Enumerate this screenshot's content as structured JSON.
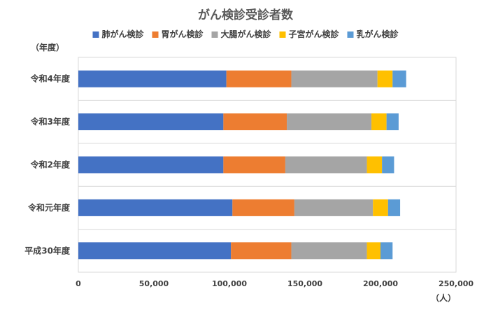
{
  "chart_data": {
    "type": "bar",
    "orientation": "horizontal",
    "stacked": true,
    "title": "がん検診受診者数",
    "ylabel": "（年度）",
    "xlabel": "（人）",
    "xlim": [
      0,
      250000
    ],
    "x_ticks": [
      0,
      50000,
      100000,
      150000,
      200000,
      250000
    ],
    "x_tick_labels": [
      "0",
      "50,000",
      "100,000",
      "150,000",
      "200,000",
      "250,000"
    ],
    "grid": true,
    "legend_position": "top",
    "categories": [
      "令和4年度",
      "令和3年度",
      "令和2年度",
      "令和元年度",
      "平成30年度"
    ],
    "series": [
      {
        "name": "肺がん検診",
        "color": "#4472c4",
        "values": [
          98000,
          96000,
          96000,
          102000,
          101000
        ]
      },
      {
        "name": "胃がん検診",
        "color": "#ed7d31",
        "values": [
          43000,
          42000,
          41000,
          41000,
          40000
        ]
      },
      {
        "name": "大腸がん検診",
        "color": "#a5a5a5",
        "values": [
          57000,
          56000,
          54000,
          52000,
          50000
        ]
      },
      {
        "name": "子宮がん検診",
        "color": "#ffc000",
        "values": [
          10000,
          10000,
          10000,
          10000,
          9000
        ]
      },
      {
        "name": "乳がん検診",
        "color": "#5b9bd5",
        "values": [
          9000,
          8000,
          8000,
          8000,
          8000
        ]
      }
    ]
  }
}
